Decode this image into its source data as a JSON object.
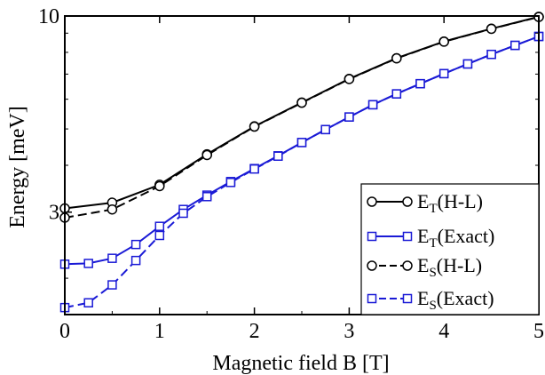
{
  "chart_data": {
    "type": "line",
    "title": "",
    "xlabel": "Magnetic field  B [T]",
    "ylabel": "Energy [meV]",
    "xlim": [
      0,
      5
    ],
    "ylim": [
      1.6,
      10
    ],
    "yscale": "log",
    "grid": false,
    "legend_position": "bottom-right",
    "xticks": [
      0,
      1,
      2,
      3,
      4,
      5
    ],
    "xtick_labels": [
      "0",
      "1",
      "2",
      "3",
      "4",
      "5"
    ],
    "yticks": [
      3,
      10
    ],
    "ytick_labels": [
      "3",
      "10"
    ],
    "series": [
      {
        "name": "E_T(H-L)",
        "main": "E",
        "sub": "T",
        "suffix": "(H-L)",
        "color": "#000000",
        "dash": "solid",
        "marker": "circle",
        "x": [
          0,
          0.5,
          1,
          1.5,
          2,
          2.5,
          3,
          3.5,
          4,
          4.5,
          5
        ],
        "y": [
          3.07,
          3.18,
          3.55,
          4.28,
          5.08,
          5.88,
          6.8,
          7.72,
          8.55,
          9.25,
          9.95
        ]
      },
      {
        "name": "E_T(Exact)",
        "main": "E",
        "sub": "T",
        "suffix": "(Exact)",
        "color": "#1a1ad6",
        "dash": "solid",
        "marker": "square",
        "x": [
          0,
          0.25,
          0.5,
          0.75,
          1,
          1.25,
          1.5,
          1.75,
          2,
          2.25,
          2.5,
          2.75,
          3,
          3.25,
          3.5,
          3.75,
          4,
          4.25,
          4.5,
          4.75,
          5
        ],
        "y": [
          2.18,
          2.19,
          2.26,
          2.46,
          2.75,
          3.05,
          3.33,
          3.62,
          3.92,
          4.24,
          4.6,
          4.98,
          5.38,
          5.8,
          6.2,
          6.6,
          7.02,
          7.45,
          7.9,
          8.35,
          8.82
        ]
      },
      {
        "name": "E_S(H-L)",
        "main": "E",
        "sub": "S",
        "suffix": "(H-L)",
        "color": "#000000",
        "dash": "dashed",
        "marker": "circle",
        "x": [
          0,
          0.5,
          1,
          1.5,
          2,
          2.5,
          3,
          3.5,
          4,
          4.5,
          5
        ],
        "y": [
          2.9,
          3.05,
          3.52,
          4.26,
          5.07,
          5.87,
          6.79,
          7.71,
          8.54,
          9.24,
          9.94
        ]
      },
      {
        "name": "E_S(Exact)",
        "main": "E",
        "sub": "S",
        "suffix": "(Exact)",
        "color": "#1a1ad6",
        "dash": "dashed",
        "marker": "square",
        "x": [
          0,
          0.25,
          0.5,
          0.75,
          1,
          1.25,
          1.5,
          1.75,
          2,
          2.25,
          2.5,
          2.75,
          3,
          3.25,
          3.5,
          3.75,
          4,
          4.25,
          4.5,
          4.75,
          5
        ],
        "y": [
          1.67,
          1.72,
          1.92,
          2.23,
          2.6,
          2.98,
          3.3,
          3.6,
          3.91,
          4.23,
          4.6,
          4.98,
          5.38,
          5.8,
          6.2,
          6.6,
          7.02,
          7.45,
          7.9,
          8.35,
          8.82
        ]
      }
    ]
  }
}
